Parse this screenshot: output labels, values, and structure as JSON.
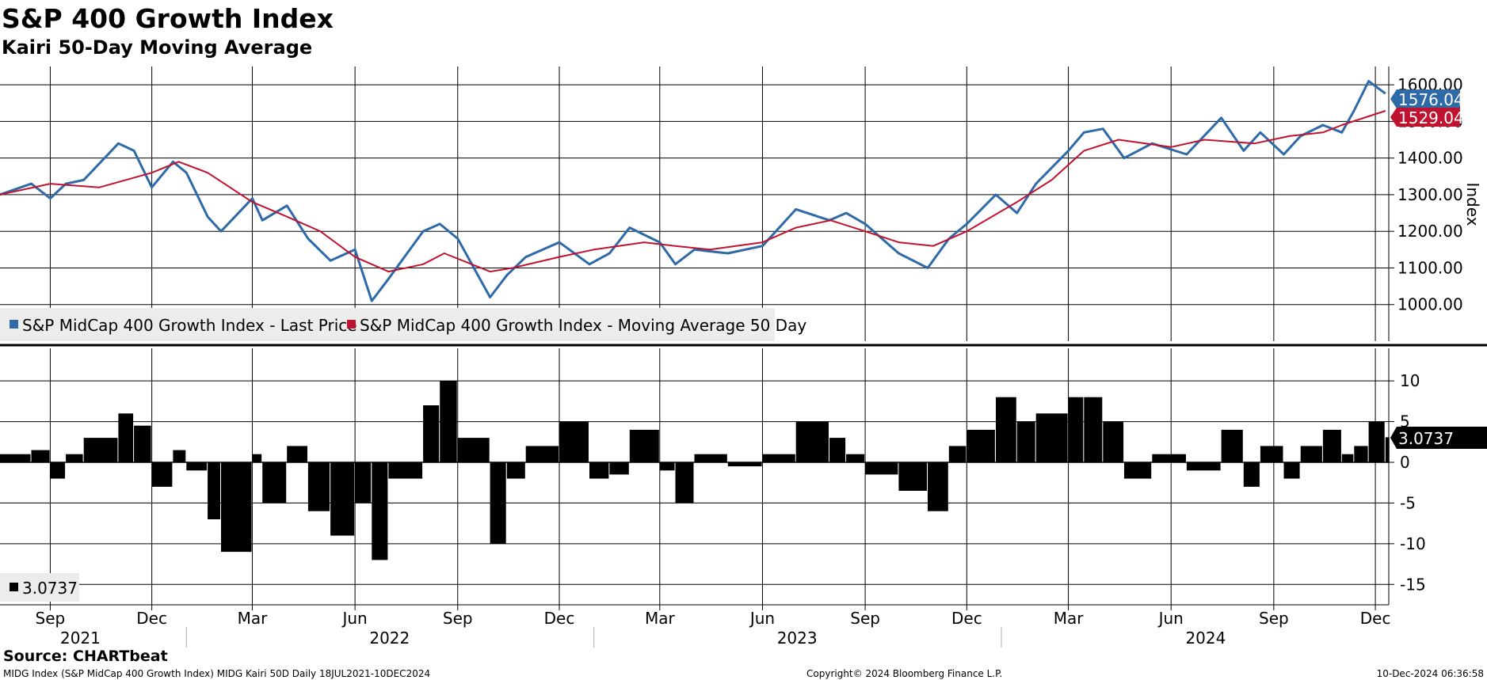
{
  "title": "S&P 400 Growth Index",
  "subtitle": "Kairi 50-Day Moving Average",
  "source": "Source: CHARTbeat",
  "footer": {
    "left": "MIDG Index (S&P MidCap 400 Growth Index) MIDG Kairi 50D  Daily 18JUL2021-10DEC2024",
    "center": "Copyright© 2024 Bloomberg Finance L.P.",
    "right": "10-Dec-2024 06:36:58"
  },
  "colors": {
    "price": "#2e6aa8",
    "ma": "#c0132f",
    "kairi": "#000000",
    "grid": "#000000"
  },
  "chart_data": [
    {
      "type": "line",
      "ylabel": "Index",
      "ylim": [
        900,
        1650
      ],
      "yticks": [
        1000,
        1100,
        1200,
        1300,
        1400,
        1500,
        1600
      ],
      "ytick_labels": [
        "1000.00",
        "1100.00",
        "1200.00",
        "1300.00",
        "1400.00",
        "1500.00",
        "1600.00"
      ],
      "legend_placement": "bottom-left",
      "last_value_labels": [
        "1576.04",
        "1529.04"
      ],
      "series": [
        {
          "name": "S&P MidCap 400 Growth Index - Last Price",
          "x": [
            "2021-07-18",
            "2021-08-15",
            "2021-09-01",
            "2021-09-15",
            "2021-10-01",
            "2021-11-01",
            "2021-11-15",
            "2021-12-01",
            "2021-12-20",
            "2022-01-01",
            "2022-01-20",
            "2022-02-01",
            "2022-03-01",
            "2022-03-10",
            "2022-04-01",
            "2022-04-20",
            "2022-05-10",
            "2022-06-01",
            "2022-06-16",
            "2022-07-01",
            "2022-08-01",
            "2022-08-16",
            "2022-09-01",
            "2022-09-30",
            "2022-10-15",
            "2022-11-01",
            "2022-12-01",
            "2022-12-28",
            "2023-01-15",
            "2023-02-02",
            "2023-03-01",
            "2023-03-15",
            "2023-04-01",
            "2023-05-01",
            "2023-06-01",
            "2023-07-01",
            "2023-07-31",
            "2023-08-15",
            "2023-09-01",
            "2023-10-01",
            "2023-10-27",
            "2023-11-15",
            "2023-12-01",
            "2023-12-27",
            "2024-01-15",
            "2024-02-01",
            "2024-03-01",
            "2024-03-15",
            "2024-04-01",
            "2024-04-20",
            "2024-05-15",
            "2024-06-15",
            "2024-07-16",
            "2024-08-05",
            "2024-08-20",
            "2024-09-10",
            "2024-09-25",
            "2024-10-15",
            "2024-11-01",
            "2024-11-12",
            "2024-11-25",
            "2024-12-10"
          ],
          "values": [
            1300,
            1330,
            1290,
            1330,
            1340,
            1440,
            1420,
            1320,
            1390,
            1360,
            1240,
            1200,
            1290,
            1230,
            1270,
            1180,
            1120,
            1150,
            1010,
            1070,
            1200,
            1220,
            1180,
            1020,
            1080,
            1130,
            1170,
            1110,
            1140,
            1210,
            1170,
            1110,
            1150,
            1140,
            1160,
            1260,
            1230,
            1250,
            1220,
            1140,
            1100,
            1180,
            1220,
            1300,
            1250,
            1330,
            1420,
            1470,
            1480,
            1400,
            1440,
            1410,
            1510,
            1420,
            1470,
            1410,
            1460,
            1490,
            1470,
            1530,
            1610,
            1576.04
          ]
        },
        {
          "name": "S&P MidCap 400 Growth Index - Moving Average 50 Day",
          "x": [
            "2021-07-18",
            "2021-09-01",
            "2021-10-15",
            "2021-12-01",
            "2021-12-25",
            "2022-01-20",
            "2022-03-01",
            "2022-04-01",
            "2022-05-01",
            "2022-06-01",
            "2022-07-01",
            "2022-08-01",
            "2022-08-20",
            "2022-09-30",
            "2022-10-20",
            "2022-12-01",
            "2023-01-01",
            "2023-02-15",
            "2023-03-15",
            "2023-04-15",
            "2023-06-01",
            "2023-07-01",
            "2023-08-01",
            "2023-09-01",
            "2023-10-01",
            "2023-11-01",
            "2023-12-01",
            "2024-01-15",
            "2024-02-15",
            "2024-03-15",
            "2024-04-15",
            "2024-06-01",
            "2024-07-01",
            "2024-08-15",
            "2024-09-15",
            "2024-10-15",
            "2024-11-01",
            "2024-12-10"
          ],
          "values": [
            1300,
            1330,
            1320,
            1360,
            1390,
            1360,
            1280,
            1240,
            1200,
            1130,
            1090,
            1110,
            1140,
            1090,
            1100,
            1130,
            1150,
            1170,
            1160,
            1150,
            1170,
            1210,
            1230,
            1200,
            1170,
            1160,
            1200,
            1280,
            1340,
            1420,
            1450,
            1430,
            1450,
            1440,
            1460,
            1470,
            1490,
            1529.04
          ]
        }
      ]
    },
    {
      "type": "bar",
      "ylabel": "",
      "ylim": [
        -17.5,
        14
      ],
      "yticks": [
        -15,
        -10,
        -5,
        0,
        5,
        10
      ],
      "ytick_labels": [
        "-15",
        "-10",
        "-5",
        "0",
        "5",
        "10"
      ],
      "legend_placement": "bottom-left",
      "legend_label": "3.0737",
      "last_value_label": "3.0737",
      "series": [
        {
          "name": "",
          "x": [
            "2021-07-18",
            "2021-08-15",
            "2021-09-01",
            "2021-09-15",
            "2021-10-01",
            "2021-11-01",
            "2021-11-15",
            "2021-12-01",
            "2021-12-20",
            "2022-01-01",
            "2022-01-20",
            "2022-02-01",
            "2022-03-01",
            "2022-03-10",
            "2022-04-01",
            "2022-04-20",
            "2022-05-10",
            "2022-06-01",
            "2022-06-16",
            "2022-07-01",
            "2022-08-01",
            "2022-08-16",
            "2022-09-01",
            "2022-09-30",
            "2022-10-15",
            "2022-11-01",
            "2022-12-01",
            "2022-12-28",
            "2023-01-15",
            "2023-02-02",
            "2023-03-01",
            "2023-03-15",
            "2023-04-01",
            "2023-05-01",
            "2023-06-01",
            "2023-07-01",
            "2023-07-31",
            "2023-08-15",
            "2023-09-01",
            "2023-10-01",
            "2023-10-27",
            "2023-11-15",
            "2023-12-01",
            "2023-12-27",
            "2024-01-15",
            "2024-02-01",
            "2024-03-01",
            "2024-03-15",
            "2024-04-01",
            "2024-04-20",
            "2024-05-15",
            "2024-06-15",
            "2024-07-16",
            "2024-08-05",
            "2024-08-20",
            "2024-09-10",
            "2024-09-25",
            "2024-10-15",
            "2024-11-01",
            "2024-11-12",
            "2024-11-25",
            "2024-12-10"
          ],
          "values": [
            1,
            1.5,
            -2,
            1,
            3,
            6,
            4.5,
            -3,
            1.5,
            -1,
            -7,
            -11,
            1,
            -5,
            2,
            -6,
            -9,
            -5,
            -12,
            -2,
            7,
            10,
            3,
            -10,
            -2,
            2,
            5,
            -2,
            -1.5,
            4,
            -1,
            -5,
            1,
            -0.5,
            1,
            5,
            3,
            1,
            -1.5,
            -3.5,
            -6,
            2,
            4,
            8,
            5,
            6,
            8,
            8,
            5,
            -2,
            1,
            -1,
            4,
            -3,
            2,
            -2,
            2,
            4,
            1,
            2,
            5,
            3.07
          ]
        }
      ]
    }
  ],
  "x_axis": {
    "month_labels": [
      {
        "label": "Sep",
        "date": "2021-09-01"
      },
      {
        "label": "Dec",
        "date": "2021-12-01"
      },
      {
        "label": "Mar",
        "date": "2022-03-01"
      },
      {
        "label": "Jun",
        "date": "2022-06-01"
      },
      {
        "label": "Sep",
        "date": "2022-09-01"
      },
      {
        "label": "Dec",
        "date": "2022-12-01"
      },
      {
        "label": "Mar",
        "date": "2023-03-01"
      },
      {
        "label": "Jun",
        "date": "2023-06-01"
      },
      {
        "label": "Sep",
        "date": "2023-09-01"
      },
      {
        "label": "Dec",
        "date": "2023-12-01"
      },
      {
        "label": "Mar",
        "date": "2024-03-01"
      },
      {
        "label": "Jun",
        "date": "2024-06-01"
      },
      {
        "label": "Sep",
        "date": "2024-09-01"
      },
      {
        "label": "Dec",
        "date": "2024-12-01"
      }
    ],
    "year_labels": [
      {
        "label": "2021",
        "date": "2021-09-28"
      },
      {
        "label": "2022",
        "date": "2022-07-02"
      },
      {
        "label": "2023",
        "date": "2023-07-02"
      },
      {
        "label": "2024",
        "date": "2024-07-02"
      }
    ],
    "year_boundaries": [
      "2022-01-01",
      "2023-01-01",
      "2024-01-01"
    ]
  }
}
